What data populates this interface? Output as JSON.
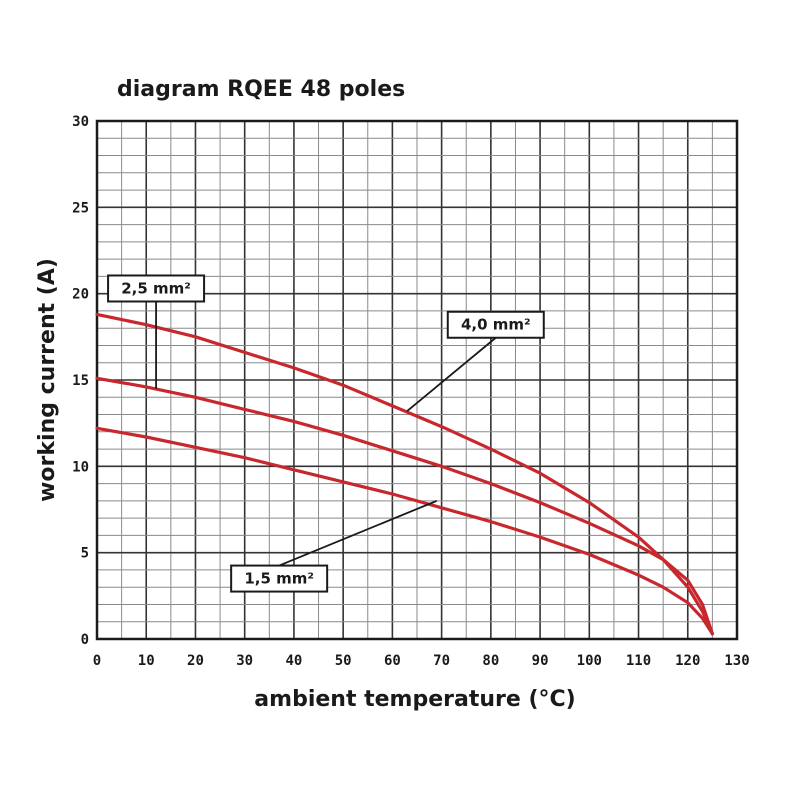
{
  "chart_data": {
    "type": "line",
    "title": "diagram RQEE 48 poles",
    "xlabel": "ambient temperature (°C)",
    "ylabel": "working current (A)",
    "xlim": [
      0,
      130
    ],
    "ylim": [
      0,
      30
    ],
    "x_ticks": [
      "0",
      "10",
      "20",
      "30",
      "40",
      "50",
      "60",
      "70",
      "80",
      "90",
      "100",
      "110",
      "120",
      "130"
    ],
    "y_ticks": [
      "0",
      "5",
      "10",
      "15",
      "20",
      "25",
      "30"
    ],
    "grid": true,
    "line_color": "#c8282d",
    "series": [
      {
        "name": "4,0 mm²",
        "x": [
          0,
          10,
          20,
          30,
          40,
          50,
          60,
          70,
          80,
          90,
          100,
          110,
          115,
          120,
          123,
          125
        ],
        "y": [
          18.8,
          18.2,
          17.5,
          16.6,
          15.7,
          14.7,
          13.5,
          12.3,
          11.0,
          9.6,
          7.9,
          5.9,
          4.6,
          3.0,
          1.6,
          0.3
        ]
      },
      {
        "name": "2,5 mm²",
        "x": [
          0,
          10,
          20,
          30,
          40,
          50,
          60,
          70,
          80,
          90,
          100,
          110,
          115,
          120,
          123,
          125
        ],
        "y": [
          15.1,
          14.6,
          14.0,
          13.3,
          12.6,
          11.8,
          10.9,
          10.0,
          9.0,
          7.9,
          6.7,
          5.4,
          4.6,
          3.4,
          2.0,
          0.3
        ]
      },
      {
        "name": "1,5 mm²",
        "x": [
          0,
          10,
          20,
          30,
          40,
          50,
          60,
          70,
          80,
          90,
          100,
          110,
          115,
          120,
          123,
          125
        ],
        "y": [
          12.2,
          11.7,
          11.1,
          10.5,
          9.8,
          9.1,
          8.4,
          7.6,
          6.8,
          5.9,
          4.9,
          3.7,
          3.0,
          2.1,
          1.2,
          0.3
        ]
      }
    ],
    "annotations": [
      {
        "text": "2,5 mm²",
        "box_x": 12,
        "box_y": 20.3,
        "target_x": 12,
        "target_y": 14.5
      },
      {
        "text": "4,0 mm²",
        "box_x": 81,
        "box_y": 18.2,
        "target_x": 63,
        "target_y": 13.2
      },
      {
        "text": "1,5 mm²",
        "box_x": 37,
        "box_y": 3.5,
        "target_x": 69,
        "target_y": 8.0
      }
    ]
  }
}
